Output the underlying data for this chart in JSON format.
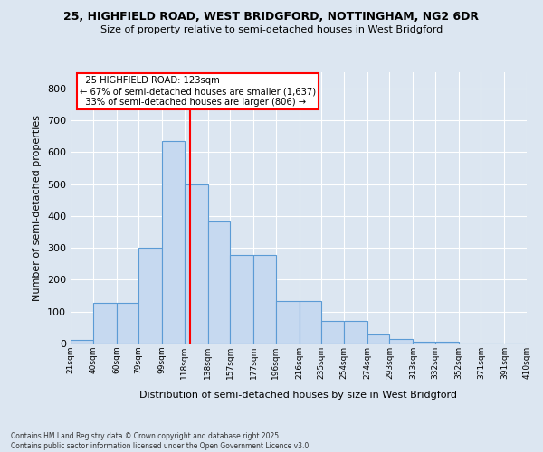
{
  "title1": "25, HIGHFIELD ROAD, WEST BRIDGFORD, NOTTINGHAM, NG2 6DR",
  "title2": "Size of property relative to semi-detached houses in West Bridgford",
  "xlabel": "Distribution of semi-detached houses by size in West Bridgford",
  "ylabel": "Number of semi-detached properties",
  "property_label": "25 HIGHFIELD ROAD: 123sqm",
  "pct_smaller": 67,
  "pct_larger": 33,
  "n_smaller": 1637,
  "n_larger": 806,
  "bin_edges": [
    21,
    40,
    60,
    79,
    99,
    118,
    138,
    157,
    177,
    196,
    216,
    235,
    254,
    274,
    293,
    313,
    332,
    352,
    371,
    391,
    410
  ],
  "bar_heights": [
    10,
    128,
    128,
    300,
    635,
    500,
    383,
    278,
    278,
    133,
    133,
    70,
    70,
    28,
    13,
    5,
    5,
    0,
    0,
    0
  ],
  "bar_color": "#c6d9f0",
  "bar_edge_color": "#5b9bd5",
  "vline_color": "red",
  "vline_x": 123,
  "background_color": "#dce6f1",
  "plot_bg_color": "#dce6f1",
  "grid_color": "#ffffff",
  "footer": "Contains HM Land Registry data © Crown copyright and database right 2025.\nContains public sector information licensed under the Open Government Licence v3.0.",
  "ylim": [
    0,
    850
  ],
  "yticks": [
    0,
    100,
    200,
    300,
    400,
    500,
    600,
    700,
    800
  ]
}
